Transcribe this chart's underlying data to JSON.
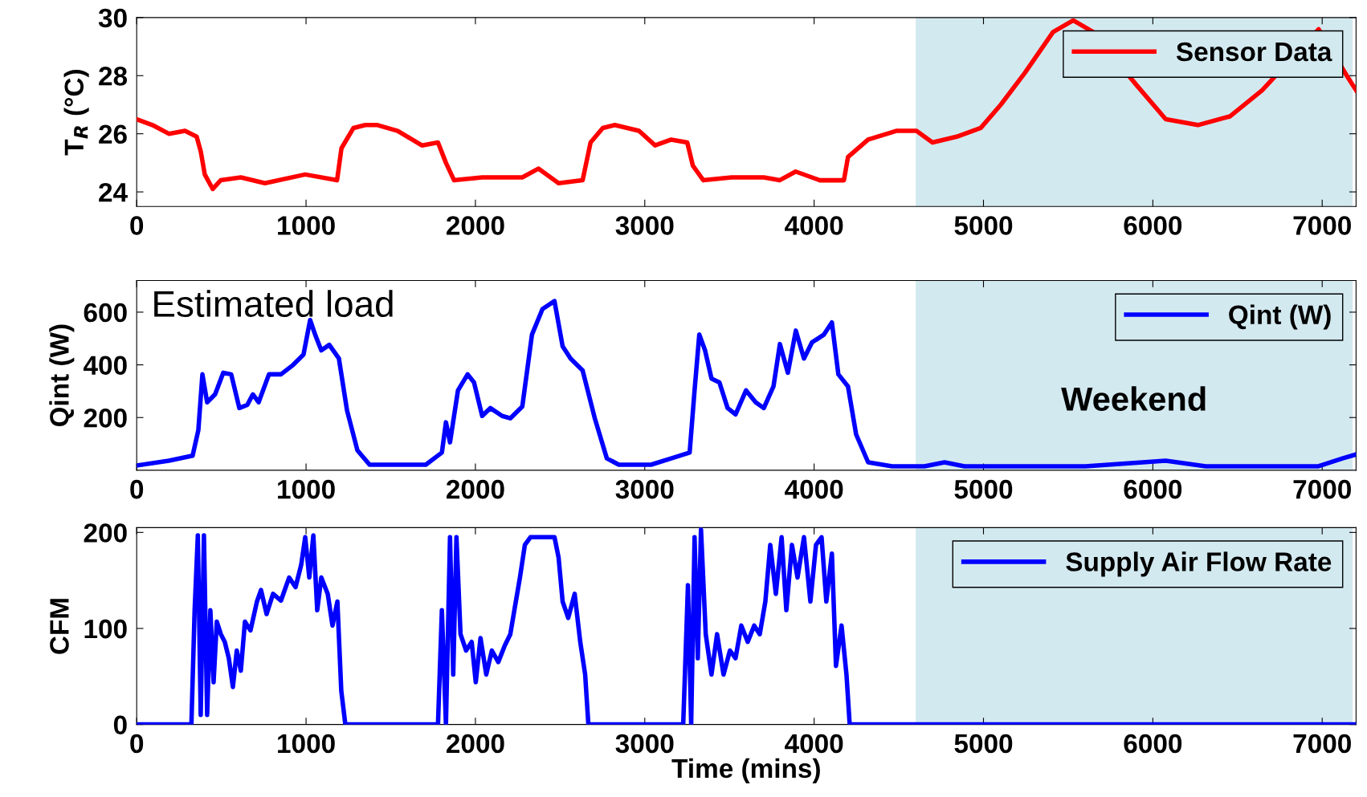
{
  "chart_data": [
    {
      "type": "line",
      "ylabel": "T$_{R}$ (°C)",
      "xlim": [
        0,
        7200
      ],
      "xticks": [
        0,
        1000,
        2000,
        3000,
        4000,
        5000,
        6000,
        7000
      ],
      "ylim": [
        23.5,
        30
      ],
      "yticks": [
        24,
        26,
        28,
        30
      ],
      "legend": "top right",
      "grid": false,
      "bands": [
        {
          "axis": "x",
          "from": 4600,
          "to": 7180,
          "color": "#d3e9f0"
        }
      ],
      "series": [
        {
          "name": "Sensor Data",
          "color": "#ff0000",
          "x": [
            0,
            93,
            190,
            285,
            354,
            378,
            402,
            449,
            496,
            615,
            757,
            995,
            1183,
            1209,
            1280,
            1350,
            1422,
            1541,
            1684,
            1779,
            1826,
            1874,
            2040,
            2277,
            2372,
            2491,
            2633,
            2680,
            2752,
            2823,
            2966,
            3061,
            3156,
            3251,
            3284,
            3346,
            3513,
            3703,
            3796,
            3891,
            4034,
            4176,
            4200,
            4319,
            4485,
            4604,
            4699,
            4842,
            4984,
            5102,
            5245,
            5411,
            5530,
            5648,
            5900,
            6076,
            6266,
            6456,
            6646,
            6979,
            7145,
            7200
          ],
          "values": [
            26.5,
            26.3,
            26.0,
            26.1,
            25.9,
            25.4,
            24.6,
            24.1,
            24.4,
            24.5,
            24.3,
            24.6,
            24.4,
            25.5,
            26.2,
            26.3,
            26.3,
            26.1,
            25.6,
            25.7,
            25.0,
            24.4,
            24.5,
            24.5,
            24.8,
            24.3,
            24.4,
            25.7,
            26.2,
            26.3,
            26.1,
            25.6,
            25.8,
            25.7,
            24.9,
            24.4,
            24.5,
            24.5,
            24.4,
            24.7,
            24.4,
            24.4,
            25.2,
            25.8,
            26.1,
            26.1,
            25.7,
            25.9,
            26.2,
            27.0,
            28.1,
            29.5,
            29.9,
            29.5,
            27.7,
            26.5,
            26.3,
            26.6,
            27.5,
            29.6,
            28.0,
            27.5
          ]
        }
      ]
    },
    {
      "type": "line",
      "ylabel": "Qint (W)",
      "xlim": [
        0,
        7200
      ],
      "xticks": [
        0,
        1000,
        2000,
        3000,
        4000,
        5000,
        6000,
        7000
      ],
      "ylim": [
        0,
        720
      ],
      "yticks": [
        200,
        400,
        600
      ],
      "legend": "top right",
      "grid": false,
      "bands": [
        {
          "axis": "x",
          "from": 4600,
          "to": 7180,
          "color": "#d3e9f0",
          "label": "Weekend"
        }
      ],
      "annotations": [
        "Estimated load"
      ],
      "series": [
        {
          "name": "Qint (W)",
          "color": "#0000ff",
          "x": [
            0,
            190,
            330,
            364,
            388,
            416,
            463,
            511,
            558,
            606,
            653,
            686,
            720,
            781,
            852,
            924,
            985,
            1024,
            1057,
            1090,
            1137,
            1194,
            1242,
            1303,
            1375,
            1707,
            1802,
            1826,
            1850,
            1897,
            1954,
            1992,
            2040,
            2088,
            2158,
            2206,
            2277,
            2334,
            2396,
            2467,
            2515,
            2562,
            2633,
            2705,
            2776,
            2847,
            3037,
            3156,
            3265,
            3294,
            3322,
            3356,
            3394,
            3441,
            3489,
            3536,
            3598,
            3655,
            3703,
            3760,
            3798,
            3845,
            3892,
            3940,
            3987,
            4058,
            4105,
            4143,
            4200,
            4248,
            4319,
            4461,
            4651,
            4770,
            4888,
            5601,
            6076,
            6313,
            6978,
            7120,
            7200
          ],
          "values": [
            18,
            36,
            55,
            152,
            364,
            258,
            288,
            370,
            364,
            236,
            248,
            288,
            258,
            364,
            364,
            400,
            439,
            570,
            509,
            455,
            476,
            424,
            227,
            76,
            21,
            21,
            67,
            182,
            106,
            303,
            364,
            333,
            206,
            236,
            206,
            197,
            242,
            515,
            612,
            642,
            470,
            424,
            379,
            197,
            45,
            21,
            21,
            45,
            67,
            303,
            515,
            455,
            348,
            333,
            236,
            212,
            303,
            258,
            236,
            318,
            479,
            370,
            530,
            424,
            485,
            515,
            561,
            364,
            318,
            136,
            30,
            15,
            15,
            30,
            15,
            15,
            36,
            15,
            15,
            45,
            60
          ]
        }
      ]
    },
    {
      "type": "line",
      "ylabel": "CFM",
      "xlabel": "Time (mins)",
      "xlim": [
        0,
        7200
      ],
      "xticks": [
        0,
        1000,
        2000,
        3000,
        4000,
        5000,
        6000,
        7000
      ],
      "ylim": [
        0,
        205
      ],
      "yticks": [
        0,
        100,
        200
      ],
      "legend": "top right",
      "grid": false,
      "bands": [
        {
          "axis": "x",
          "from": 4600,
          "to": 7180,
          "color": "#d3e9f0"
        }
      ],
      "series": [
        {
          "name": "Supply Air Flow Rate",
          "color": "#0000ff",
          "x": [
            0,
            323,
            342,
            361,
            378,
            397,
            416,
            435,
            454,
            473,
            497,
            520,
            544,
            568,
            591,
            615,
            639,
            672,
            710,
            734,
            767,
            805,
            852,
            900,
            938,
            971,
            995,
            1019,
            1043,
            1066,
            1090,
            1128,
            1156,
            1185,
            1208,
            1232,
            1779,
            1802,
            1826,
            1850,
            1869,
            1888,
            1912,
            1945,
            1978,
            2002,
            2030,
            2064,
            2097,
            2135,
            2173,
            2206,
            2230,
            2263,
            2292,
            2325,
            2396,
            2467,
            2491,
            2515,
            2548,
            2586,
            2619,
            2648,
            2667,
            3227,
            3255,
            3274,
            3294,
            3313,
            3332,
            3360,
            3394,
            3427,
            3465,
            3503,
            3536,
            3570,
            3608,
            3646,
            3679,
            3712,
            3741,
            3774,
            3808,
            3836,
            3869,
            3902,
            3940,
            3978,
            4011,
            4044,
            4072,
            4105,
            4129,
            4162,
            4191,
            4210,
            7200
          ],
          "values": [
            0,
            0,
            119,
            197,
            10,
            197,
            10,
            119,
            44,
            107,
            94,
            86,
            69,
            39,
            77,
            56,
            107,
            98,
            128,
            140,
            115,
            136,
            129,
            153,
            143,
            166,
            195,
            153,
            197,
            119,
            153,
            136,
            103,
            128,
            35,
            0,
            0,
            119,
            0,
            195,
            52,
            195,
            94,
            77,
            86,
            44,
            90,
            52,
            77,
            65,
            82,
            94,
            119,
            153,
            187,
            195,
            195,
            195,
            174,
            128,
            111,
            136,
            86,
            52,
            0,
            0,
            145,
            0,
            195,
            69,
            203,
            94,
            52,
            94,
            52,
            77,
            69,
            103,
            86,
            103,
            94,
            128,
            187,
            136,
            195,
            119,
            187,
            153,
            195,
            128,
            187,
            195,
            128,
            178,
            61,
            103,
            52,
            0,
            0
          ]
        }
      ]
    }
  ]
}
